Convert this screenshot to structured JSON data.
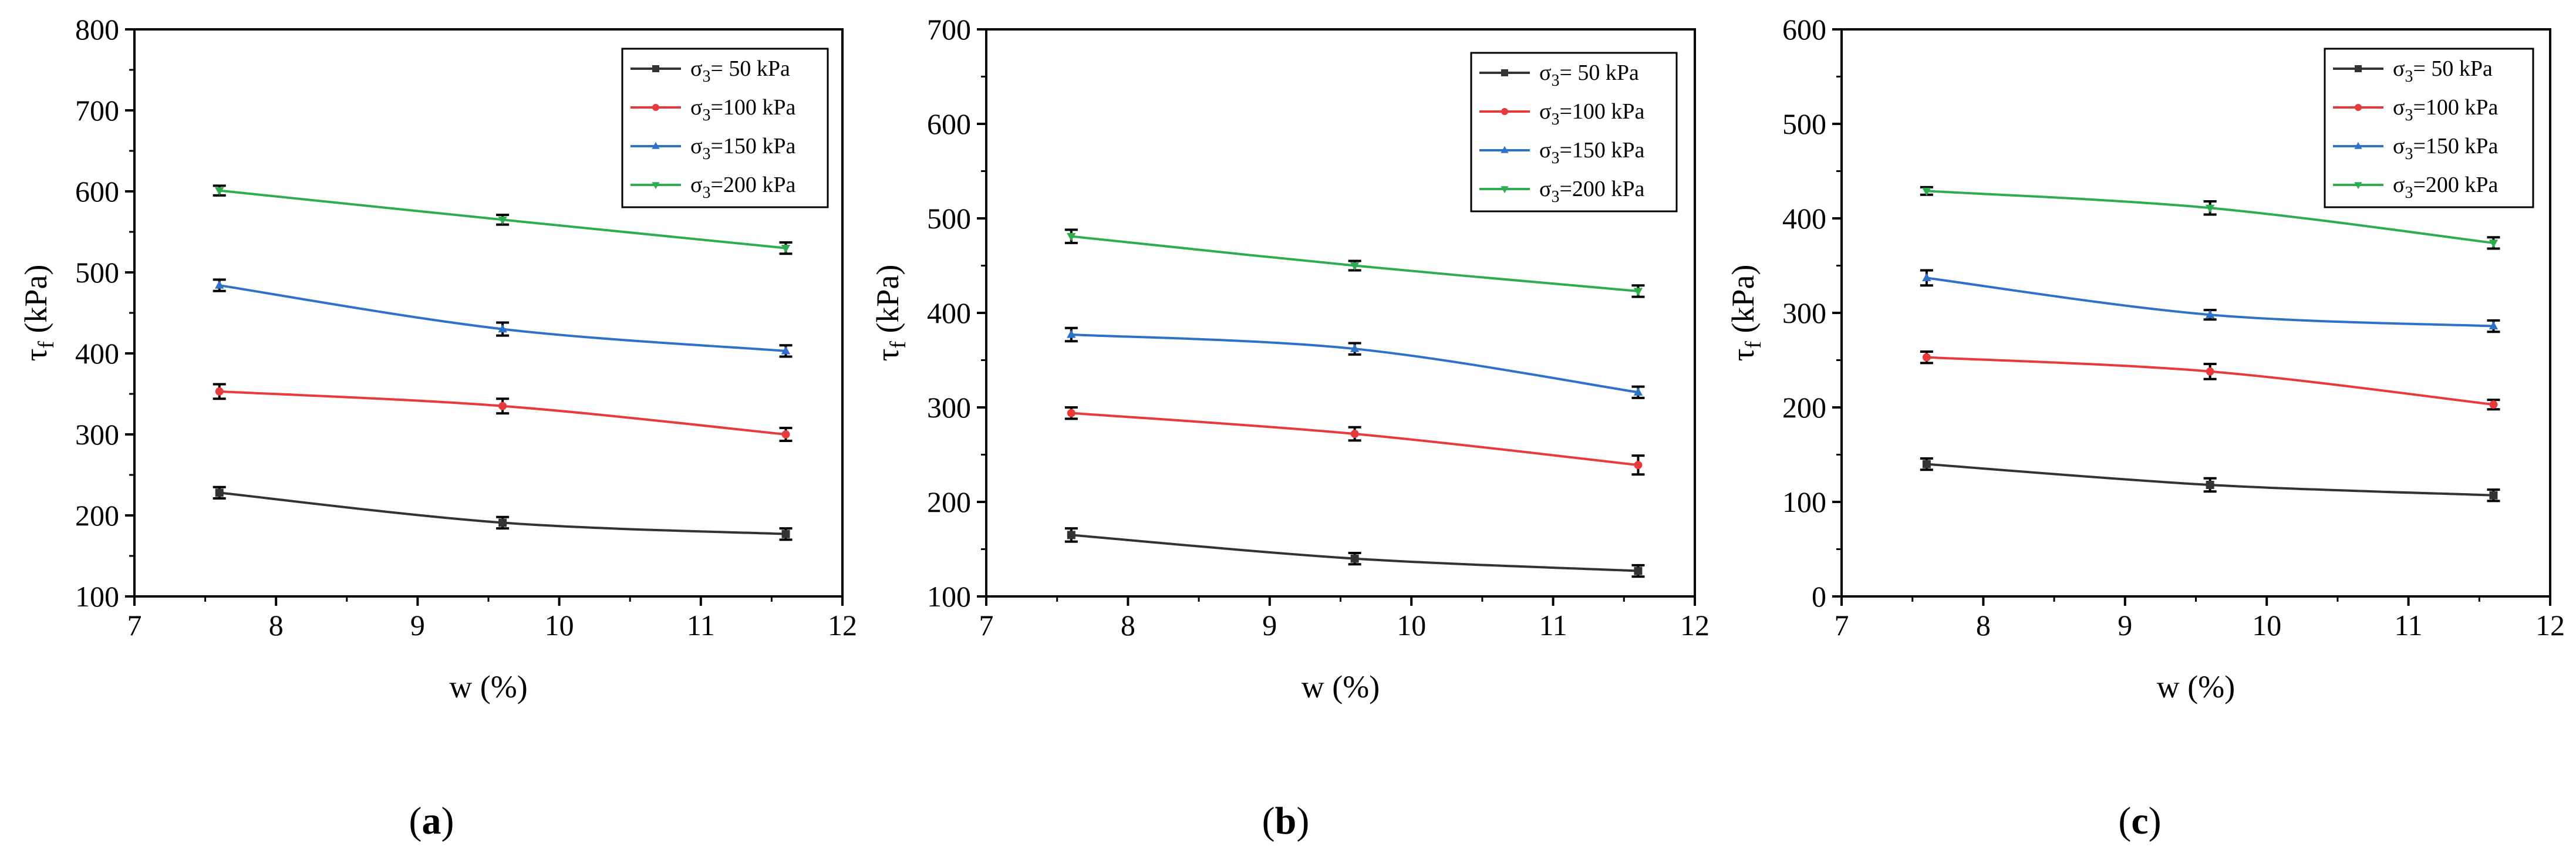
{
  "figure": {
    "panels": [
      {
        "label_open": "(",
        "label_letter": "a",
        "label_close": ")"
      },
      {
        "label_open": "(",
        "label_letter": "b",
        "label_close": ")"
      },
      {
        "label_open": "(",
        "label_letter": "c",
        "label_close": ")"
      }
    ]
  },
  "chart_data": [
    {
      "type": "line",
      "panel": "a",
      "xlabel": "w (%)",
      "ylabel": "τf (kPa)",
      "ylabel_main": "τ",
      "ylabel_sub": "f",
      "ylabel_rest": " (kPa)",
      "xlim": [
        7,
        12
      ],
      "ylim": [
        100,
        800
      ],
      "xticks": [
        7,
        8,
        9,
        10,
        11,
        12
      ],
      "yticks": [
        100,
        200,
        300,
        400,
        500,
        600,
        700,
        800
      ],
      "x": [
        7.6,
        9.6,
        11.6
      ],
      "series": [
        {
          "name": "σ3= 50 kPa",
          "legend_sub": "3",
          "legend_rest": "=  50 kPa",
          "color": "#333333",
          "marker": "square",
          "values": [
            228,
            191,
            177
          ],
          "errors": [
            7,
            7,
            7
          ]
        },
        {
          "name": "σ3=100 kPa",
          "legend_sub": "3",
          "legend_rest": "=100 kPa",
          "color": "#e8393b",
          "marker": "circle",
          "values": [
            353,
            335,
            300
          ],
          "errors": [
            9,
            9,
            8
          ]
        },
        {
          "name": "σ3=150 kPa",
          "legend_sub": "3",
          "legend_rest": "=150 kPa",
          "color": "#2d72c8",
          "marker": "triangle-up",
          "values": [
            484,
            430,
            403
          ],
          "errors": [
            7,
            8,
            7
          ]
        },
        {
          "name": "σ3=200 kPa",
          "legend_sub": "3",
          "legend_rest": "=200 kPa",
          "color": "#2fac4f",
          "marker": "triangle-down",
          "values": [
            601,
            565,
            530
          ],
          "errors": [
            6,
            6,
            7
          ]
        }
      ],
      "legend_position": "top-right"
    },
    {
      "type": "line",
      "panel": "b",
      "xlabel": "w (%)",
      "ylabel": "τf (kPa)",
      "ylabel_main": "τ",
      "ylabel_sub": "f",
      "ylabel_rest": " (kPa)",
      "xlim": [
        7,
        12
      ],
      "ylim": [
        100,
        700
      ],
      "xticks": [
        7,
        8,
        9,
        10,
        11,
        12
      ],
      "yticks": [
        100,
        200,
        300,
        400,
        500,
        600,
        700
      ],
      "x": [
        7.6,
        9.6,
        11.6
      ],
      "series": [
        {
          "name": "σ3= 50 kPa",
          "legend_sub": "3",
          "legend_rest": "=  50 kPa",
          "color": "#333333",
          "marker": "square",
          "values": [
            165,
            140,
            127
          ],
          "errors": [
            7,
            6,
            6
          ]
        },
        {
          "name": "σ3=100 kPa",
          "legend_sub": "3",
          "legend_rest": "=100 kPa",
          "color": "#e8393b",
          "marker": "circle",
          "values": [
            294,
            272,
            239
          ],
          "errors": [
            6,
            7,
            10
          ]
        },
        {
          "name": "σ3=150 kPa",
          "legend_sub": "3",
          "legend_rest": "=150 kPa",
          "color": "#2d72c8",
          "marker": "triangle-up",
          "values": [
            377,
            362,
            316
          ],
          "errors": [
            7,
            6,
            6
          ]
        },
        {
          "name": "σ3=200 kPa",
          "legend_sub": "3",
          "legend_rest": "=200 kPa",
          "color": "#2fac4f",
          "marker": "triangle-down",
          "values": [
            481,
            450,
            423
          ],
          "errors": [
            7,
            5,
            6
          ]
        }
      ],
      "legend_position": "top-right"
    },
    {
      "type": "line",
      "panel": "c",
      "xlabel": "w (%)",
      "ylabel": "τf (kPa)",
      "ylabel_main": "τ",
      "ylabel_sub": "f",
      "ylabel_rest": " (kPa)",
      "xlim": [
        7,
        12
      ],
      "ylim": [
        0,
        600
      ],
      "xticks": [
        7,
        8,
        9,
        10,
        11,
        12
      ],
      "yticks": [
        0,
        100,
        200,
        300,
        400,
        500,
        600
      ],
      "x": [
        7.6,
        9.6,
        11.6
      ],
      "series": [
        {
          "name": "σ3= 50 kPa",
          "legend_sub": "3",
          "legend_rest": "=  50 kPa",
          "color": "#333333",
          "marker": "square",
          "values": [
            140,
            118,
            107
          ],
          "errors": [
            6,
            7,
            6
          ]
        },
        {
          "name": "σ3=100 kPa",
          "legend_sub": "3",
          "legend_rest": "=100 kPa",
          "color": "#e8393b",
          "marker": "circle",
          "values": [
            253,
            238,
            203
          ],
          "errors": [
            6,
            8,
            5
          ]
        },
        {
          "name": "σ3=150 kPa",
          "legend_sub": "3",
          "legend_rest": "=150 kPa",
          "color": "#2d72c8",
          "marker": "triangle-up",
          "values": [
            337,
            298,
            286
          ],
          "errors": [
            8,
            5,
            6
          ]
        },
        {
          "name": "σ3=200 kPa",
          "legend_sub": "3",
          "legend_rest": "=200 kPa",
          "color": "#2fac4f",
          "marker": "triangle-down",
          "values": [
            429,
            411,
            374
          ],
          "errors": [
            4,
            7,
            6
          ]
        }
      ],
      "legend_position": "top-right"
    }
  ]
}
